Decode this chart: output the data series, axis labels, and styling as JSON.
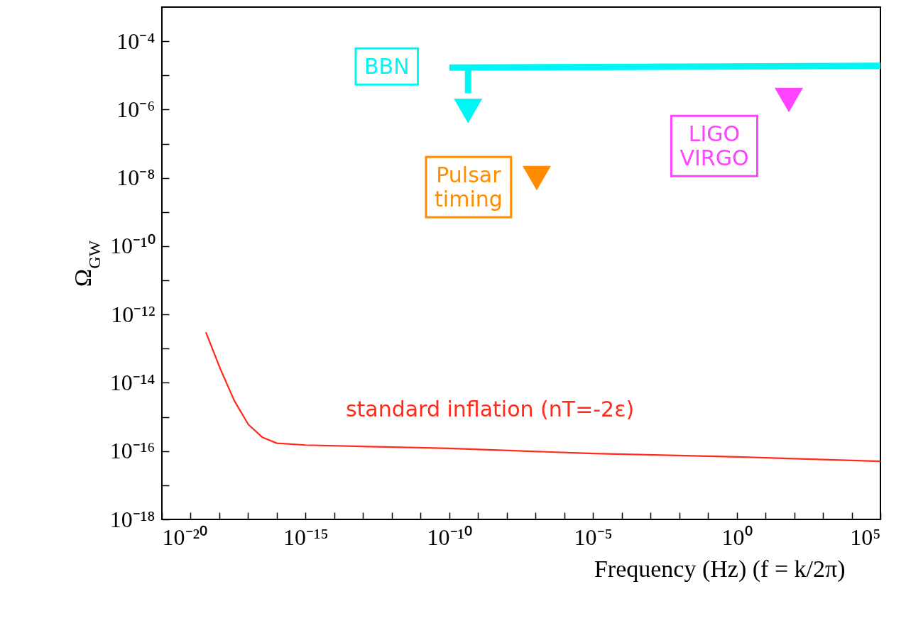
{
  "chart_data": {
    "type": "line",
    "xlabel": "Frequency (Hz)   (f = k/2π)",
    "ylabel": "Ω$_{GW}$",
    "log": "xy",
    "xlim": [
      1e-20,
      100000.0
    ],
    "ylim": [
      1e-18,
      0.001
    ],
    "xticks": [
      {
        "value": 1e-20,
        "label": "10⁻²⁰"
      },
      {
        "value": 1e-19,
        "label": null
      },
      {
        "value": 1e-18,
        "label": null
      },
      {
        "value": 1e-17,
        "label": null
      },
      {
        "value": 1e-16,
        "label": null
      },
      {
        "value": 1e-15,
        "label": "10⁻¹⁵"
      },
      {
        "value": 1e-14,
        "label": null
      },
      {
        "value": 1e-13,
        "label": null
      },
      {
        "value": 1e-12,
        "label": null
      },
      {
        "value": 1e-11,
        "label": null
      },
      {
        "value": 1e-10,
        "label": "10⁻¹⁰"
      },
      {
        "value": 1e-09,
        "label": null
      },
      {
        "value": 1e-08,
        "label": null
      },
      {
        "value": 1e-07,
        "label": null
      },
      {
        "value": 1e-06,
        "label": null
      },
      {
        "value": 1e-05,
        "label": "10⁻⁵"
      },
      {
        "value": 0.0001,
        "label": null
      },
      {
        "value": 0.001,
        "label": null
      },
      {
        "value": 0.01,
        "label": null
      },
      {
        "value": 0.1,
        "label": null
      },
      {
        "value": 1,
        "label": "10⁰"
      },
      {
        "value": 10,
        "label": null
      },
      {
        "value": 100,
        "label": null
      },
      {
        "value": 1000,
        "label": null
      },
      {
        "value": 10000,
        "label": null
      },
      {
        "value": 100000.0,
        "label": "10⁵"
      }
    ],
    "yticks": [
      {
        "value": 1e-18,
        "label": "10⁻¹⁸"
      },
      {
        "value": 1e-17,
        "label": null
      },
      {
        "value": 1e-16,
        "label": "10⁻¹⁶"
      },
      {
        "value": 1e-15,
        "label": null
      },
      {
        "value": 1e-14,
        "label": "10⁻¹⁴"
      },
      {
        "value": 1e-13,
        "label": null
      },
      {
        "value": 1e-12,
        "label": "10⁻¹²"
      },
      {
        "value": 1e-11,
        "label": null
      },
      {
        "value": 1e-10,
        "label": "10⁻¹⁰"
      },
      {
        "value": 1e-09,
        "label": null
      },
      {
        "value": 1e-08,
        "label": "10⁻⁸"
      },
      {
        "value": 1e-07,
        "label": null
      },
      {
        "value": 1e-06,
        "label": "10⁻⁶"
      },
      {
        "value": 1e-05,
        "label": null
      },
      {
        "value": 0.0001,
        "label": "10⁻⁴"
      }
    ],
    "series": [
      {
        "name": "standard inflation (nT=-2ε)",
        "color": "#ff2a1a",
        "x": [
          3.4e-19,
          1.07e-18,
          3.3e-18,
          1.02e-17,
          3.2e-17,
          1e-16,
          1e-15,
          1e-10,
          1e-05,
          1,
          100000.0
        ],
        "values": [
          3e-13,
          2.6e-14,
          3e-15,
          6e-16,
          2.5e-16,
          1.7e-16,
          1.5e-16,
          1.2e-16,
          8.5e-17,
          6.8e-17,
          5e-17
        ]
      },
      {
        "name": "BBN",
        "color": "#00f5f5",
        "x": [
          1e-10,
          100000.0
        ],
        "values": [
          1.7e-05,
          1.9e-05
        ]
      },
      {
        "color": "#00f5f5",
        "x": [
          4.5e-10,
          4.5e-10
        ],
        "values": [
          1.7e-05,
          3e-06
        ]
      },
      {
        "type": "scatter",
        "color": "#00f5f5",
        "marker": "triangle",
        "x": [
          4.5e-10
        ],
        "values": [
          1.2e-06
        ]
      },
      {
        "name": "Pulsar timing",
        "type": "scatter",
        "color": "#ff8c00",
        "marker": "triangle",
        "x": [
          1.1e-07
        ],
        "values": [
          1.3e-08
        ]
      },
      {
        "name": "LIGO VIRGO",
        "type": "scatter",
        "color": "#ff44ff",
        "marker": "triangle",
        "x": [
          65
        ],
        "values": [
          2.5e-06
        ]
      }
    ]
  }
}
